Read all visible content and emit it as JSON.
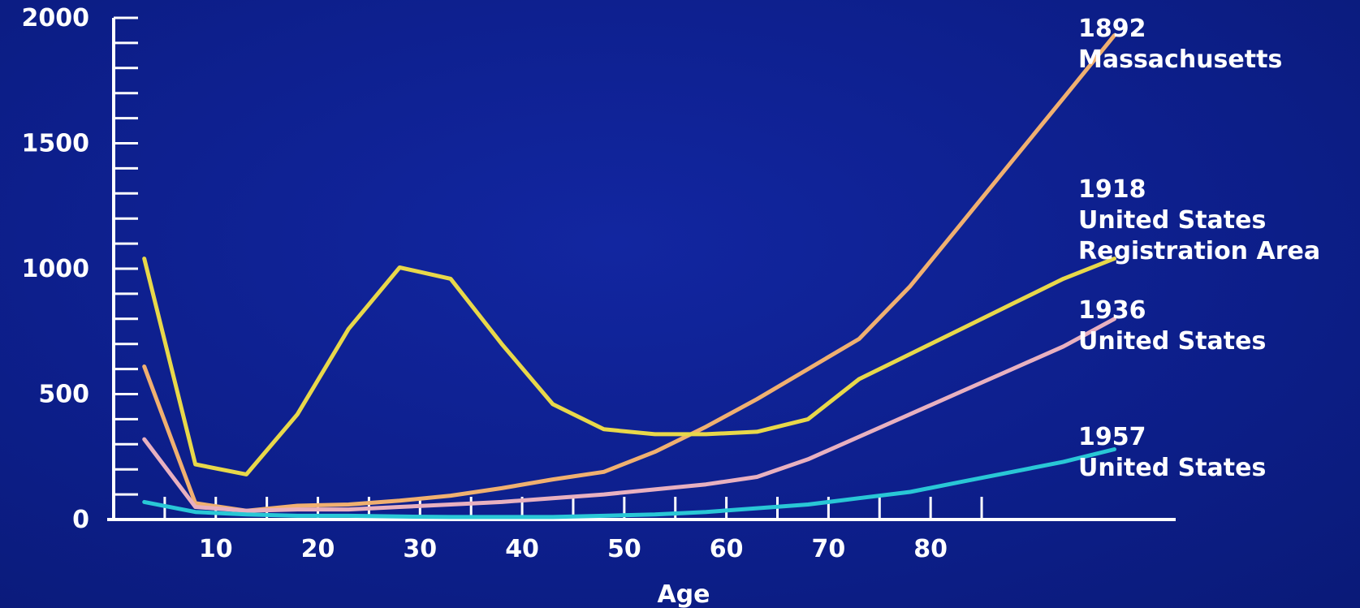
{
  "chart_data": {
    "type": "line",
    "xlabel": "Age",
    "ylabel": "",
    "title": "",
    "xlim": [
      0,
      104
    ],
    "ylim": [
      0,
      2000
    ],
    "x_ticks": [
      10,
      20,
      30,
      40,
      50,
      60,
      70,
      80
    ],
    "y_ticks": [
      0,
      500,
      1000,
      1500,
      2000
    ],
    "grid": false,
    "legend": "right",
    "series": [
      {
        "name": "1892 Massachusetts",
        "label_lines": [
          "1892",
          "Massachusetts"
        ],
        "color": "#f0b070",
        "points": [
          [
            3,
            610
          ],
          [
            8,
            65
          ],
          [
            13,
            35
          ],
          [
            18,
            55
          ],
          [
            23,
            60
          ],
          [
            28,
            75
          ],
          [
            33,
            95
          ],
          [
            38,
            125
          ],
          [
            43,
            160
          ],
          [
            48,
            190
          ],
          [
            53,
            270
          ],
          [
            58,
            370
          ],
          [
            63,
            480
          ],
          [
            68,
            600
          ],
          [
            73,
            720
          ],
          [
            78,
            930
          ],
          [
            83,
            1180
          ],
          [
            88,
            1430
          ],
          [
            93,
            1680
          ],
          [
            98,
            1930
          ]
        ]
      },
      {
        "name": "1918 United States Registration Area",
        "label_lines": [
          "1918",
          "United States",
          "Registration Area"
        ],
        "color": "#e8d84a",
        "points": [
          [
            3,
            1040
          ],
          [
            8,
            220
          ],
          [
            13,
            180
          ],
          [
            18,
            420
          ],
          [
            23,
            760
          ],
          [
            28,
            1005
          ],
          [
            33,
            960
          ],
          [
            38,
            700
          ],
          [
            43,
            460
          ],
          [
            48,
            360
          ],
          [
            53,
            340
          ],
          [
            58,
            340
          ],
          [
            63,
            350
          ],
          [
            68,
            400
          ],
          [
            73,
            560
          ],
          [
            78,
            660
          ],
          [
            83,
            760
          ],
          [
            88,
            860
          ],
          [
            93,
            960
          ],
          [
            98,
            1040
          ]
        ]
      },
      {
        "name": "1936 United States",
        "label_lines": [
          "1936",
          "United States"
        ],
        "color": "#e8b0c0",
        "points": [
          [
            3,
            320
          ],
          [
            8,
            50
          ],
          [
            13,
            35
          ],
          [
            18,
            40
          ],
          [
            23,
            40
          ],
          [
            28,
            50
          ],
          [
            33,
            60
          ],
          [
            38,
            70
          ],
          [
            43,
            85
          ],
          [
            48,
            100
          ],
          [
            53,
            120
          ],
          [
            58,
            140
          ],
          [
            63,
            170
          ],
          [
            68,
            240
          ],
          [
            73,
            330
          ],
          [
            78,
            420
          ],
          [
            83,
            510
          ],
          [
            88,
            600
          ],
          [
            93,
            690
          ],
          [
            98,
            800
          ]
        ]
      },
      {
        "name": "1957 United States",
        "label_lines": [
          "1957",
          "United States"
        ],
        "color": "#29c7d6",
        "points": [
          [
            3,
            70
          ],
          [
            8,
            30
          ],
          [
            13,
            20
          ],
          [
            18,
            15
          ],
          [
            23,
            15
          ],
          [
            28,
            12
          ],
          [
            33,
            10
          ],
          [
            38,
            10
          ],
          [
            43,
            10
          ],
          [
            48,
            15
          ],
          [
            53,
            20
          ],
          [
            58,
            30
          ],
          [
            63,
            45
          ],
          [
            68,
            60
          ],
          [
            73,
            85
          ],
          [
            78,
            110
          ],
          [
            83,
            150
          ],
          [
            88,
            190
          ],
          [
            93,
            230
          ],
          [
            98,
            280
          ]
        ]
      }
    ]
  }
}
